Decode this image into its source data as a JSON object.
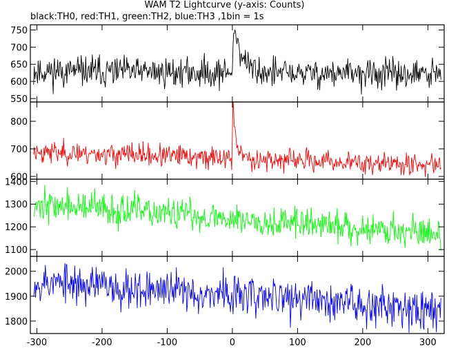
{
  "chart_data": {
    "type": "line",
    "title": "WAM T2 Lightcurve (y-axis: Counts)",
    "subtitle": "black:TH0, red:TH1, green:TH2, blue:TH3 ,1bin = 1s",
    "xlabel": "",
    "ylabel": "",
    "xlim": [
      -310,
      325
    ],
    "x_ticks": [
      -300,
      -200,
      -100,
      0,
      100,
      200,
      300
    ],
    "grid": false,
    "panels": [
      {
        "name": "TH0",
        "color": "#000000",
        "ylim": [
          540,
          765
        ],
        "y_ticks": [
          550,
          600,
          650,
          700,
          750
        ],
        "baseline_start": 630,
        "baseline_end": 620,
        "noise": 22,
        "peak": 770,
        "peak_x": 2,
        "decay_s": 12,
        "series_seed": 11
      },
      {
        "name": "TH1",
        "color": "#ff0000",
        "ylim": [
          590,
          870
        ],
        "y_ticks": [
          600,
          700,
          800
        ],
        "baseline_start": 690,
        "baseline_end": 640,
        "noise": 20,
        "peak": 860,
        "peak_x": 1,
        "decay_s": 5,
        "series_seed": 23
      },
      {
        "name": "TH2",
        "color": "#00ff00",
        "ylim": [
          1070,
          1410
        ],
        "y_ticks": [
          1100,
          1200,
          1300,
          1400
        ],
        "baseline_start": 1300,
        "baseline_end": 1170,
        "noise": 35,
        "peak": 0,
        "peak_x": 0,
        "decay_s": 0,
        "series_seed": 37
      },
      {
        "name": "TH3",
        "color": "#0000ff",
        "ylim": [
          1750,
          2060
        ],
        "y_ticks": [
          1800,
          1900,
          2000
        ],
        "baseline_start": 1960,
        "baseline_end": 1850,
        "noise": 40,
        "peak": 0,
        "peak_x": 0,
        "decay_s": 0,
        "series_seed": 53
      }
    ]
  }
}
